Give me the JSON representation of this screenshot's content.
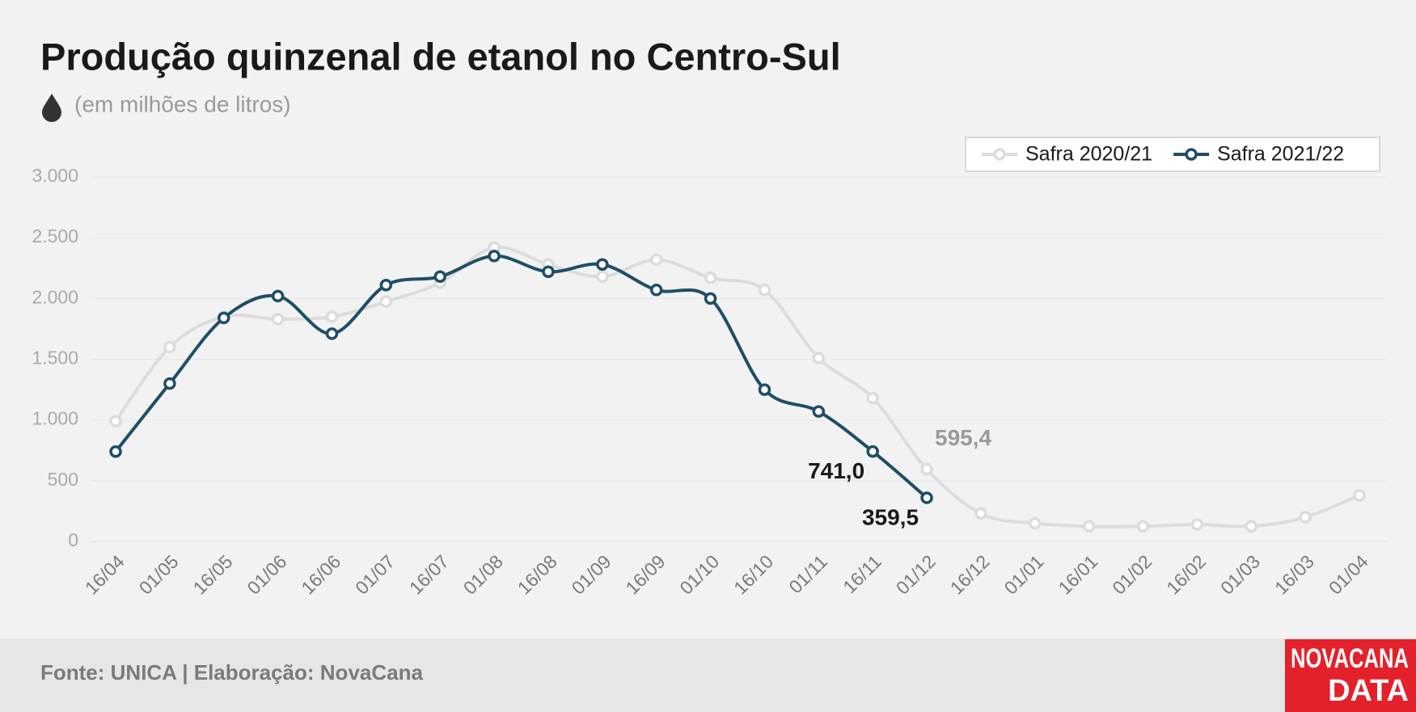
{
  "chart_data": {
    "type": "line",
    "title": "Produção quinzenal de etanol no Centro-Sul",
    "subtitle": "(em milhões de litros)",
    "source": "Fonte: UNICA | Elaboração: NovaCana",
    "logo": [
      "NOVACANA",
      "DATA"
    ],
    "categories": [
      "16/04",
      "01/05",
      "16/05",
      "01/06",
      "16/06",
      "01/07",
      "16/07",
      "01/08",
      "16/08",
      "01/09",
      "16/09",
      "01/10",
      "16/10",
      "01/11",
      "16/11",
      "01/12",
      "16/12",
      "01/01",
      "16/01",
      "01/02",
      "16/02",
      "01/03",
      "16/03",
      "01/04"
    ],
    "series": [
      {
        "name": "Safra 2020/21",
        "color": "#dcdcdc",
        "label_color": "#9a9a9a",
        "values": [
          990,
          1600,
          1850,
          1830,
          1850,
          1975,
          2130,
          2420,
          2280,
          2180,
          2320,
          2170,
          2070,
          1510,
          1180,
          595.4,
          230,
          150,
          125,
          125,
          140,
          125,
          200,
          380
        ],
        "value_labels": [
          null,
          null,
          null,
          null,
          null,
          null,
          null,
          null,
          null,
          null,
          null,
          null,
          null,
          null,
          null,
          "595,4",
          null,
          null,
          null,
          null,
          null,
          null,
          null,
          null
        ]
      },
      {
        "name": "Safra 2021/22",
        "color": "#1f4e66",
        "label_color": "#1a1a1a",
        "values": [
          740,
          1300,
          1840,
          2020,
          1710,
          2110,
          2180,
          2350,
          2220,
          2280,
          2070,
          2000,
          1250,
          1070,
          741.0,
          359.5,
          null,
          null,
          null,
          null,
          null,
          null,
          null,
          null
        ],
        "value_labels": [
          null,
          null,
          null,
          null,
          null,
          null,
          null,
          null,
          null,
          null,
          null,
          null,
          null,
          null,
          "741,0",
          "359,5",
          null,
          null,
          null,
          null,
          null,
          null,
          null,
          null
        ]
      }
    ],
    "ylim": [
      0,
      3000
    ],
    "yticks": [
      0,
      500,
      {
        "value": 1000,
        "label": "1.000"
      },
      {
        "value": 1500,
        "label": "1.500"
      },
      {
        "value": 2000,
        "label": "2.000"
      },
      {
        "value": 2500,
        "label": "2.500"
      },
      {
        "value": 3000,
        "label": "3.000"
      }
    ],
    "grid": true,
    "legend": "top-right"
  }
}
